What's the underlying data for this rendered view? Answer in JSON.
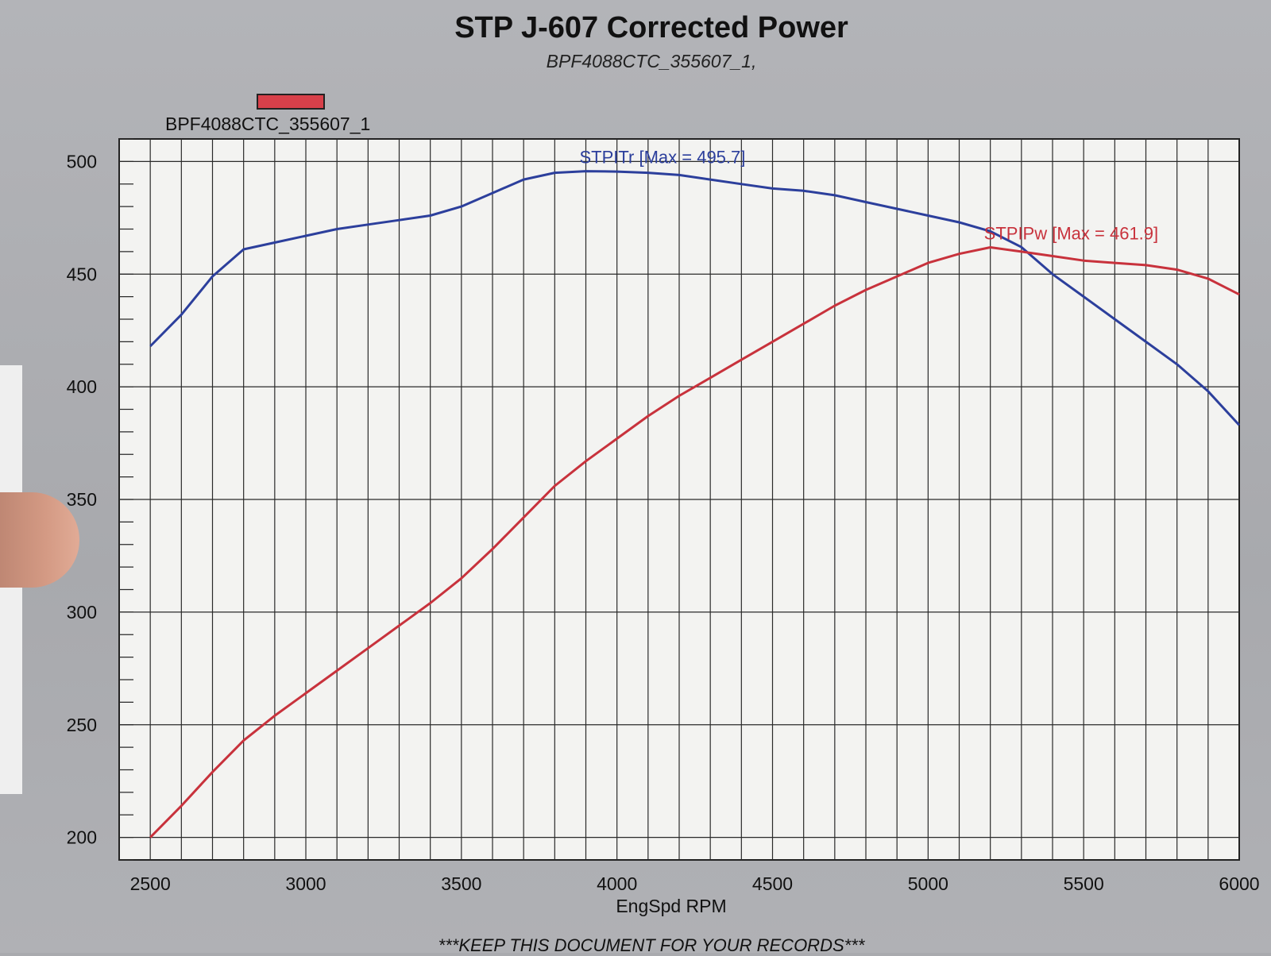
{
  "header": {
    "title": "STP J-607 Corrected Power",
    "subtitle": "BPF4088CTC_355607_1,"
  },
  "legend": {
    "label": "BPF4088CTC_355607_1",
    "color": "#d8404a"
  },
  "footer": {
    "note": "***KEEP THIS DOCUMENT FOR YOUR RECORDS***"
  },
  "chart_data": {
    "type": "line",
    "title": "STP J-607 Corrected Power",
    "subtitle": "BPF4088CTC_355607_1,",
    "xlabel": "EngSpd RPM",
    "ylabel": "",
    "xlim": [
      2400,
      6000
    ],
    "ylim": [
      190,
      510
    ],
    "x_ticks": [
      2500,
      3000,
      3500,
      4000,
      4500,
      5000,
      5500,
      6000
    ],
    "y_ticks": [
      200,
      250,
      300,
      350,
      400,
      450,
      500
    ],
    "grid": true,
    "series": [
      {
        "name": "STPITr",
        "label": "STPITr [Max = 495.7]",
        "color": "#2c3f9c",
        "x": [
          2500,
          2600,
          2700,
          2800,
          2900,
          3000,
          3100,
          3200,
          3300,
          3400,
          3500,
          3600,
          3700,
          3800,
          3900,
          4000,
          4100,
          4200,
          4300,
          4400,
          4500,
          4600,
          4700,
          4800,
          4900,
          5000,
          5100,
          5200,
          5300,
          5400,
          5500,
          5600,
          5700,
          5800,
          5900,
          6000
        ],
        "y": [
          418,
          432,
          449,
          461,
          464,
          467,
          470,
          472,
          474,
          476,
          480,
          486,
          492,
          495,
          495.7,
          495.5,
          495,
          494,
          492,
          490,
          488,
          487,
          485,
          482,
          479,
          476,
          473,
          469,
          462,
          450,
          440,
          430,
          420,
          410,
          398,
          383
        ]
      },
      {
        "name": "STPIPw",
        "label": "STPIPw [Max = 461.9]",
        "color": "#c8323c",
        "x": [
          2500,
          2600,
          2700,
          2800,
          2900,
          3000,
          3100,
          3200,
          3300,
          3400,
          3500,
          3600,
          3700,
          3800,
          3900,
          4000,
          4100,
          4200,
          4300,
          4400,
          4500,
          4600,
          4700,
          4800,
          4900,
          5000,
          5100,
          5200,
          5300,
          5400,
          5500,
          5600,
          5700,
          5800,
          5900,
          6000
        ],
        "y": [
          200,
          214,
          229,
          243,
          254,
          264,
          274,
          284,
          294,
          304,
          315,
          328,
          342,
          356,
          367,
          377,
          387,
          396,
          404,
          412,
          420,
          428,
          436,
          443,
          449,
          455,
          459,
          461.9,
          460,
          458,
          456,
          455,
          454,
          452,
          448,
          441
        ]
      }
    ]
  }
}
